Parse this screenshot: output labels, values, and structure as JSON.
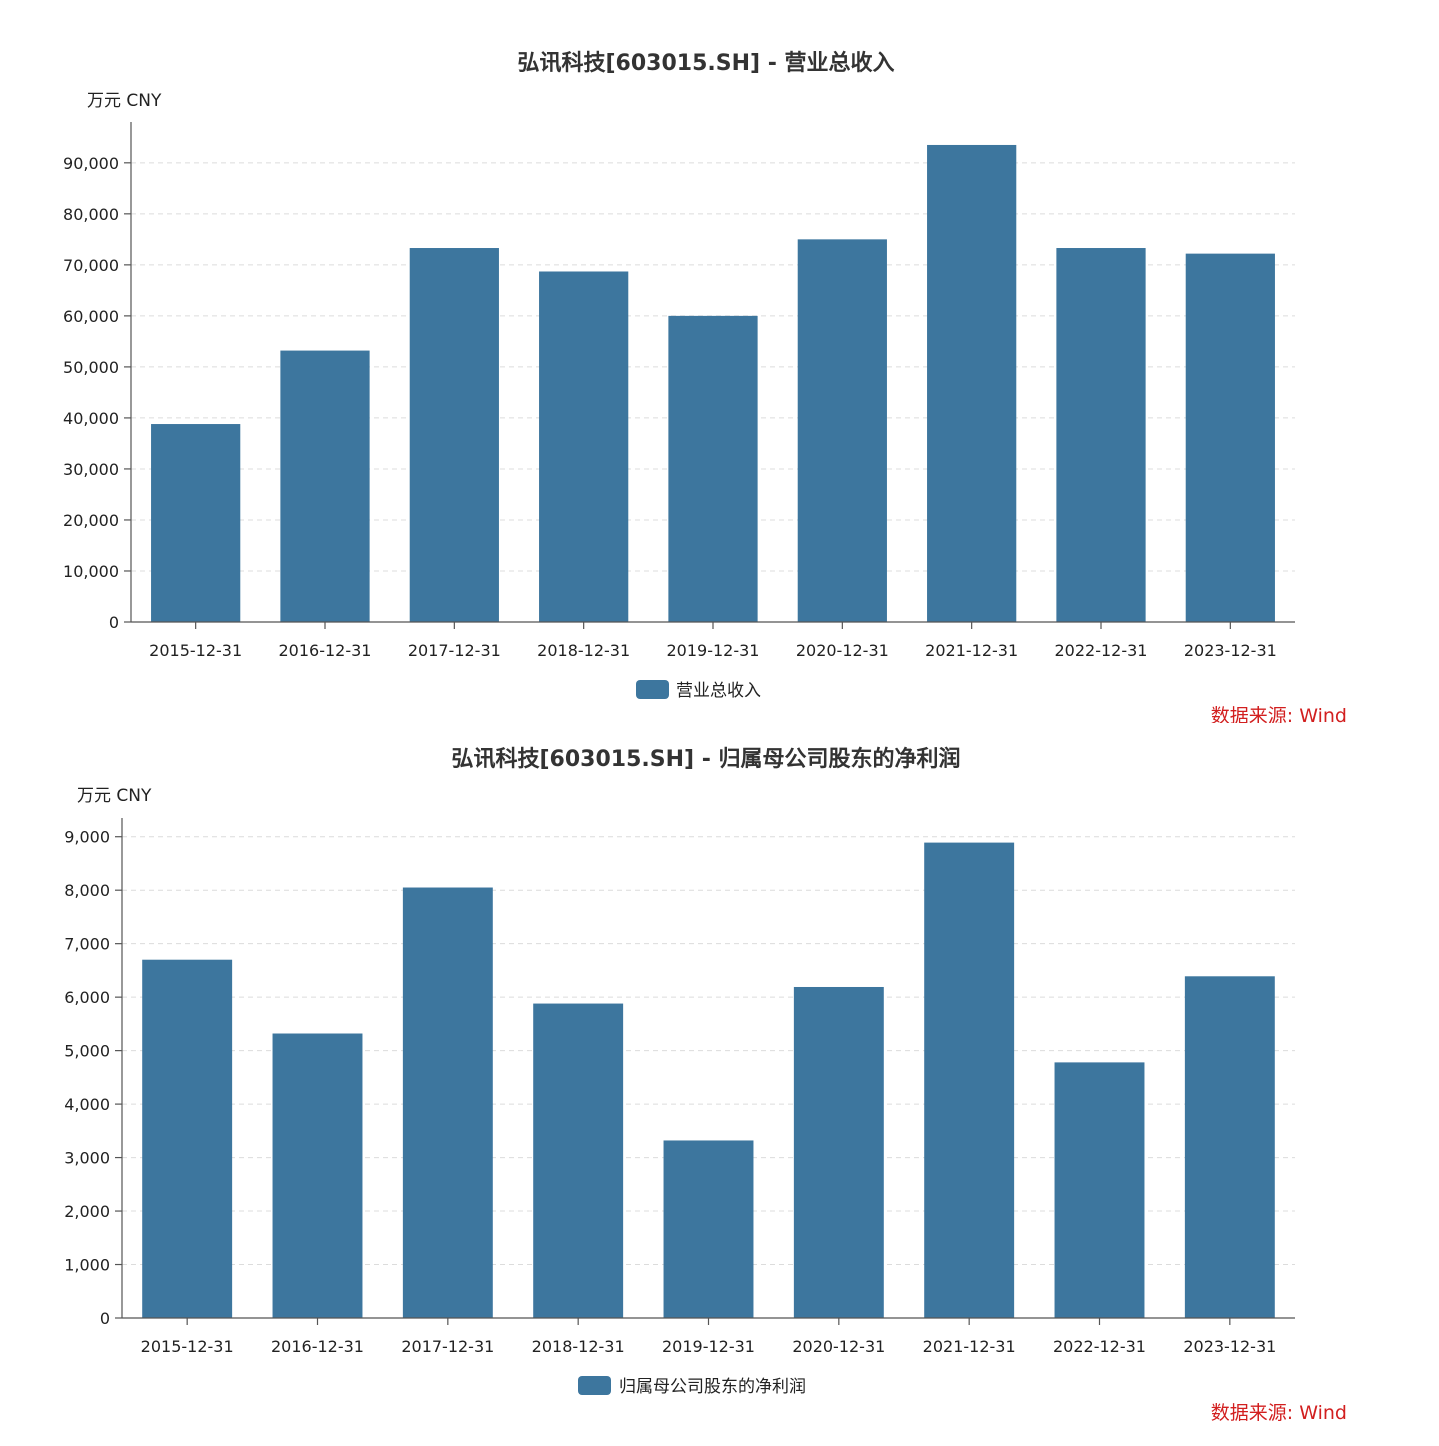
{
  "charts": [
    {
      "type": "bar",
      "title": "弘讯科技[603015.SH] - 营业总收入",
      "unit_label": "万元  CNY",
      "categories": [
        "2015-12-31",
        "2016-12-31",
        "2017-12-31",
        "2018-12-31",
        "2019-12-31",
        "2020-12-31",
        "2021-12-31",
        "2022-12-31",
        "2023-12-31"
      ],
      "series": [
        {
          "name": "营业总收入",
          "values": [
            38800,
            53200,
            73300,
            68700,
            60000,
            75000,
            93500,
            73300,
            72200
          ]
        }
      ],
      "yticks": [
        0,
        10000,
        20000,
        30000,
        40000,
        50000,
        60000,
        70000,
        80000,
        90000
      ],
      "ytick_labels": [
        "0",
        "10,000",
        "20,000",
        "30,000",
        "40,000",
        "50,000",
        "60,000",
        "70,000",
        "80,000",
        "90,000"
      ],
      "ylim": [
        0,
        98000
      ],
      "bar_color": "#3d769e",
      "source": "数据来源: Wind"
    },
    {
      "type": "bar",
      "title": "弘讯科技[603015.SH] - 归属母公司股东的净利润",
      "unit_label": "万元  CNY",
      "categories": [
        "2015-12-31",
        "2016-12-31",
        "2017-12-31",
        "2018-12-31",
        "2019-12-31",
        "2020-12-31",
        "2021-12-31",
        "2022-12-31",
        "2023-12-31"
      ],
      "series": [
        {
          "name": "归属母公司股东的净利润",
          "values": [
            6700,
            5320,
            8050,
            5880,
            3320,
            6190,
            8890,
            4780,
            6390
          ]
        }
      ],
      "yticks": [
        0,
        1000,
        2000,
        3000,
        4000,
        5000,
        6000,
        7000,
        8000,
        9000
      ],
      "ytick_labels": [
        "0",
        "1,000",
        "2,000",
        "3,000",
        "4,000",
        "5,000",
        "6,000",
        "7,000",
        "8,000",
        "9,000"
      ],
      "ylim": [
        0,
        9350
      ],
      "bar_color": "#3d769e",
      "source": "数据来源: Wind"
    }
  ]
}
